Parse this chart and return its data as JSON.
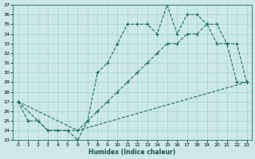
{
  "background_color": "#cce8e8",
  "grid_color": "#aacfcf",
  "line_color": "#1a7060",
  "xlabel": "Humidex (Indice chaleur)",
  "xlim": [
    -0.5,
    23.5
  ],
  "ylim": [
    23,
    37
  ],
  "xticks": [
    0,
    1,
    2,
    3,
    4,
    5,
    6,
    7,
    8,
    9,
    10,
    11,
    12,
    13,
    14,
    15,
    16,
    17,
    18,
    19,
    20,
    21,
    22,
    23
  ],
  "yticks": [
    23,
    24,
    25,
    26,
    27,
    28,
    29,
    30,
    31,
    32,
    33,
    34,
    35,
    36,
    37
  ],
  "line1_x": [
    0,
    1,
    2,
    3,
    4,
    5,
    6,
    7,
    8,
    9,
    10,
    11,
    12,
    13,
    14,
    15,
    16,
    17,
    18,
    19,
    20,
    21,
    22,
    23
  ],
  "line1_y": [
    27,
    25,
    25,
    24,
    24,
    24,
    23,
    25,
    30,
    31,
    33,
    35,
    35,
    35,
    34,
    37,
    34,
    36,
    36,
    35,
    35,
    33,
    33,
    29
  ],
  "line2_x": [
    0,
    2,
    3,
    6,
    23
  ],
  "line2_y": [
    27,
    25,
    24,
    24,
    29
  ],
  "line3_x": [
    0,
    6,
    7,
    8,
    9,
    10,
    11,
    12,
    13,
    14,
    15,
    16,
    17,
    18,
    19,
    20,
    21,
    22,
    23
  ],
  "line3_y": [
    27,
    24,
    25,
    26,
    27,
    28,
    29,
    30,
    31,
    32,
    33,
    33,
    34,
    34,
    35,
    33,
    33,
    29,
    29
  ]
}
